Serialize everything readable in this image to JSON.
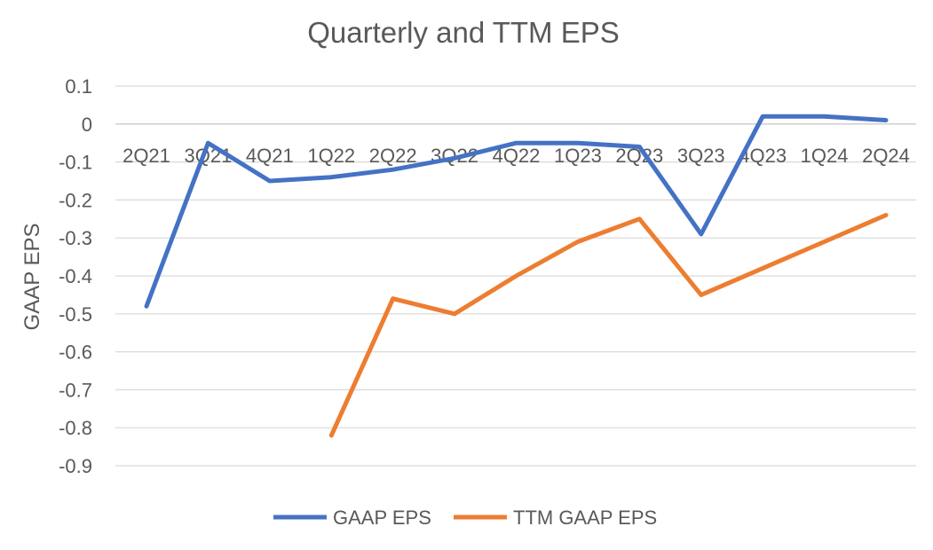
{
  "chart_data": {
    "type": "line",
    "title": "Quarterly and TTM EPS",
    "xlabel": "",
    "ylabel": "GAAP EPS",
    "ylim": [
      -0.9,
      0.1
    ],
    "yticks": [
      "0.1",
      "0",
      "-0.1",
      "-0.2",
      "-0.3",
      "-0.4",
      "-0.5",
      "-0.6",
      "-0.7",
      "-0.8",
      "-0.9"
    ],
    "grid": true,
    "legend_position": "bottom",
    "categories": [
      "2Q21",
      "3Q21",
      "4Q21",
      "1Q22",
      "2Q22",
      "3Q22",
      "4Q22",
      "1Q23",
      "2Q23",
      "3Q23",
      "4Q23",
      "1Q24",
      "2Q24"
    ],
    "series": [
      {
        "name": "GAAP EPS",
        "color": "#4472C4",
        "values": [
          -0.48,
          -0.05,
          -0.15,
          -0.14,
          -0.12,
          -0.09,
          -0.05,
          -0.05,
          -0.06,
          -0.29,
          0.02,
          0.02,
          0.01
        ]
      },
      {
        "name": "TTM GAAP EPS",
        "color": "#ED7D31",
        "values": [
          null,
          null,
          null,
          -0.82,
          -0.46,
          -0.5,
          -0.4,
          -0.31,
          -0.25,
          -0.45,
          -0.38,
          -0.31,
          -0.24
        ]
      }
    ]
  }
}
